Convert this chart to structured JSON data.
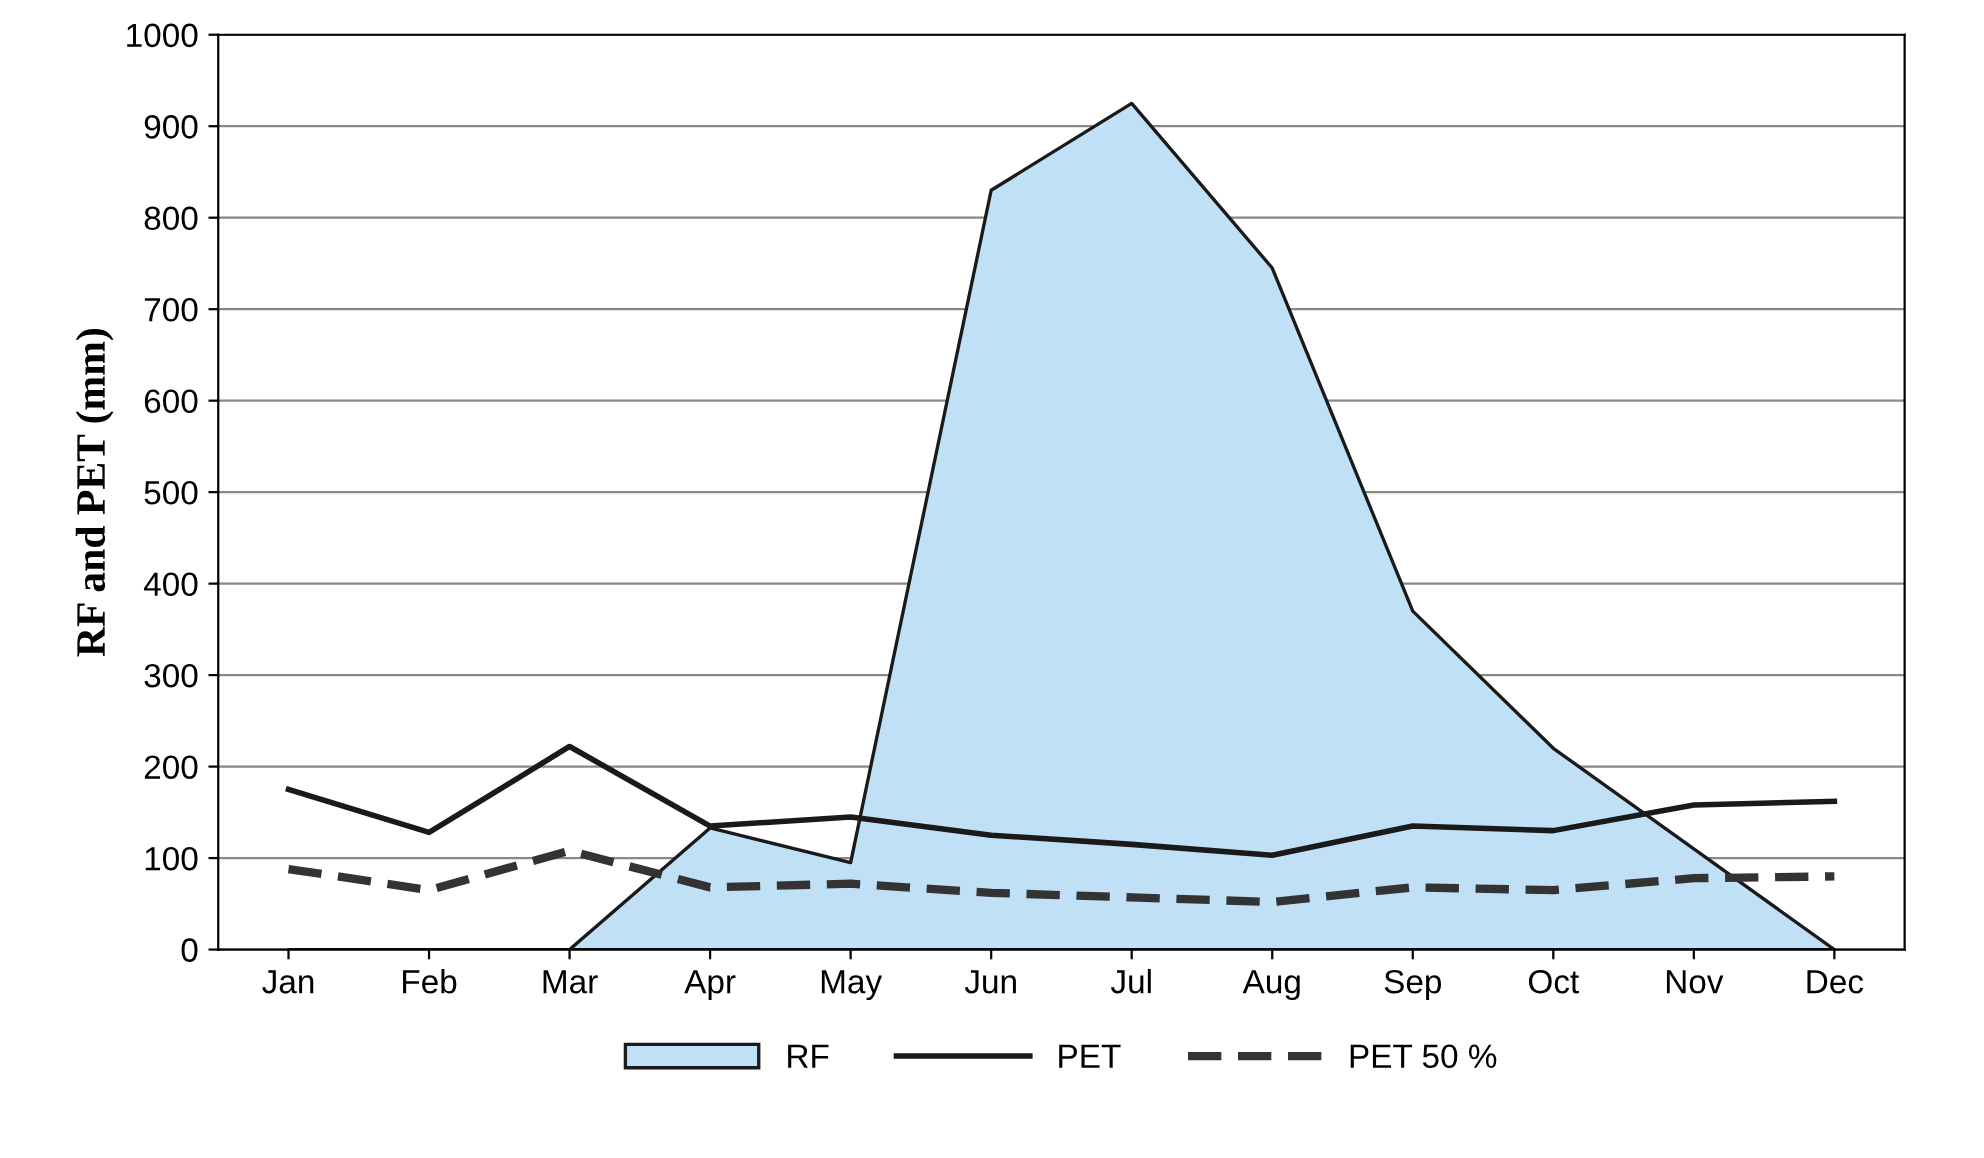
{
  "chart_data": {
    "type": "line",
    "ylabel": "RF and PET (mm)",
    "categories": [
      "Jan",
      "Feb",
      "Mar",
      "Apr",
      "May",
      "Jun",
      "Jul",
      "Aug",
      "Sep",
      "Oct",
      "Nov",
      "Dec"
    ],
    "series": [
      {
        "name": "RF",
        "type": "area",
        "color": "#bfe0f5",
        "values": [
          0,
          0,
          0,
          133,
          95,
          830,
          925,
          745,
          370,
          220,
          110,
          0
        ]
      },
      {
        "name": "PET",
        "color": "#1a1a1a",
        "line_style": "solid",
        "values": [
          175,
          128,
          222,
          135,
          145,
          125,
          115,
          103,
          135,
          130,
          158,
          162
        ]
      },
      {
        "name": "PET 50 %",
        "color": "#333333",
        "line_style": "dashed",
        "values": [
          88,
          65,
          108,
          68,
          72,
          62,
          57,
          52,
          68,
          65,
          78,
          80
        ]
      }
    ],
    "ylim": [
      0,
      1000
    ],
    "yticks": [
      0,
      100,
      200,
      300,
      400,
      500,
      600,
      700,
      800,
      900,
      1000
    ],
    "grid": "y",
    "legend": "bottom",
    "marker": "none"
  }
}
